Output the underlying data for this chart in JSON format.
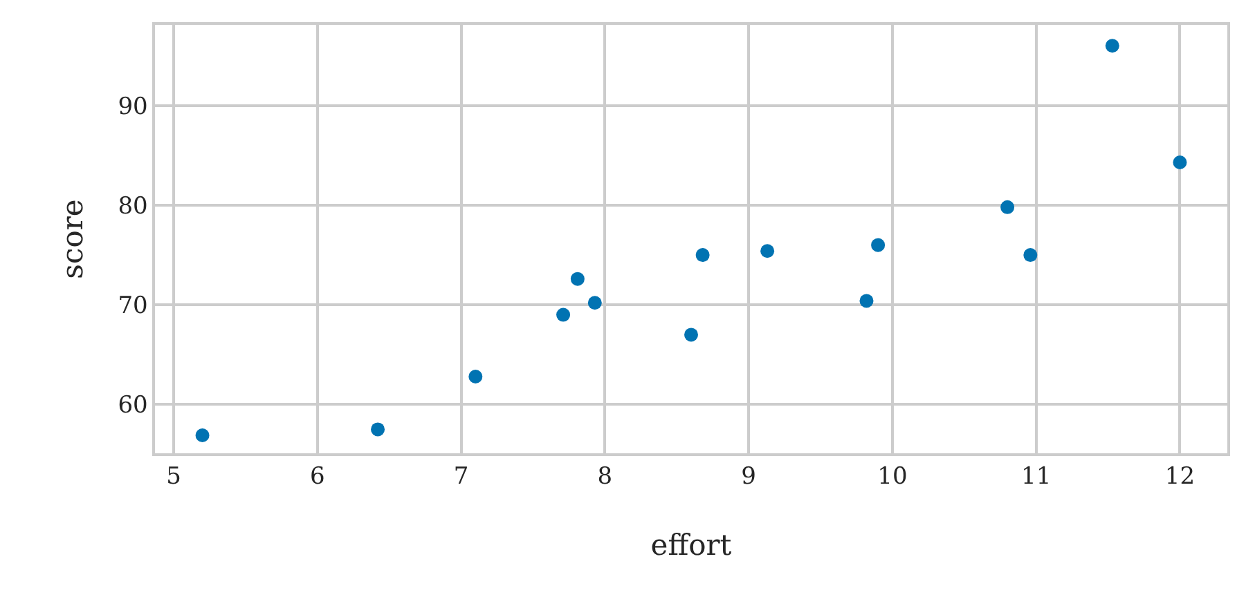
{
  "chart_data": {
    "type": "scatter",
    "xlabel": "effort",
    "ylabel": "score",
    "x": [
      5.2,
      6.42,
      7.1,
      7.71,
      7.81,
      7.93,
      8.6,
      8.68,
      9.13,
      9.82,
      9.9,
      10.8,
      10.96,
      11.53,
      12.0
    ],
    "series": [
      {
        "color": "#0173b2",
        "values": [
          56.9,
          57.5,
          62.8,
          69.0,
          72.6,
          70.2,
          67.0,
          75.0,
          75.4,
          70.4,
          76.0,
          79.8,
          75.0,
          96.0,
          84.3
        ]
      }
    ],
    "xlim": [
      4.87,
      12.33
    ],
    "xticks": [
      5,
      6,
      7,
      8,
      9,
      10,
      11,
      12
    ],
    "ylim": [
      55.1,
      98.1
    ],
    "yticks": [
      60,
      70,
      80,
      90
    ],
    "grid": true,
    "marker": "circle"
  }
}
